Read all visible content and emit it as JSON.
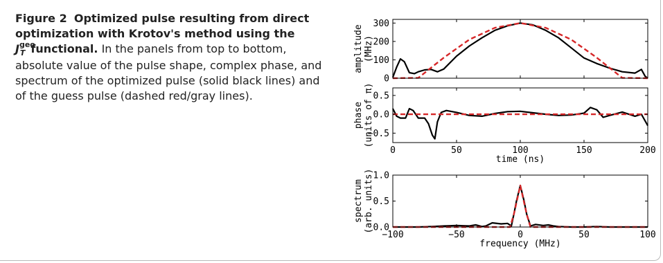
{
  "caption": {
    "figure_label": "Figure 2",
    "title_bold": "Optimized pulse resulting from direct optimization with Krotov's method using the",
    "functional_symbol": "J",
    "functional_sup": "geo",
    "functional_sub": "T",
    "functional_word": "functional.",
    "body": "In the panels from top to bottom, absolute value of the pulse shape, complex phase, and spectrum of the optimized pulse (solid black lines) and of the guess pulse (dashed red/gray lines)."
  },
  "colors": {
    "optimized": "#000000",
    "guess": "#d62728"
  },
  "chart_data": [
    {
      "type": "line",
      "ylabel": "amplitude (MHz)",
      "ylabel_lines": [
        "amplitude",
        "(MHz)"
      ],
      "xlim": [
        0,
        200
      ],
      "ylim": [
        0,
        320
      ],
      "yticks": [
        0,
        100,
        200,
        300
      ],
      "series": [
        {
          "name": "optimized",
          "x": [
            0,
            3,
            6,
            9,
            13,
            17,
            20,
            25,
            30,
            35,
            40,
            50,
            60,
            70,
            80,
            90,
            100,
            110,
            120,
            130,
            140,
            150,
            160,
            170,
            180,
            190,
            195,
            198,
            200
          ],
          "y": [
            5,
            60,
            105,
            90,
            30,
            25,
            35,
            45,
            48,
            35,
            50,
            120,
            175,
            220,
            260,
            285,
            300,
            290,
            260,
            220,
            165,
            110,
            80,
            55,
            35,
            28,
            48,
            10,
            0
          ]
        },
        {
          "name": "guess",
          "x": [
            0,
            20,
            40,
            60,
            80,
            100,
            120,
            140,
            160,
            180,
            200
          ],
          "y": [
            0,
            2,
            112,
            210,
            274,
            300,
            274,
            210,
            112,
            2,
            0
          ]
        }
      ]
    },
    {
      "type": "line",
      "ylabel": "phase (units of π)",
      "ylabel_lines": [
        "phase",
        "(units of π)"
      ],
      "xlabel": "time (ns)",
      "xlim": [
        0,
        200
      ],
      "ylim": [
        -0.75,
        0.7
      ],
      "xticks": [
        0,
        50,
        100,
        150,
        200
      ],
      "yticks": [
        -0.5,
        0.0,
        0.5
      ],
      "ytick_labels": [
        "−0.5",
        "0.0",
        "0.5"
      ],
      "series": [
        {
          "name": "optimized",
          "x": [
            0,
            3,
            6,
            10,
            13,
            16,
            20,
            25,
            28,
            31,
            33,
            35,
            38,
            42,
            50,
            60,
            70,
            80,
            90,
            100,
            110,
            120,
            130,
            140,
            150,
            155,
            160,
            165,
            170,
            180,
            190,
            195,
            200
          ],
          "y": [
            0.15,
            -0.05,
            -0.1,
            -0.1,
            0.15,
            0.1,
            -0.1,
            -0.1,
            -0.25,
            -0.55,
            -0.65,
            -0.2,
            0.05,
            0.1,
            0.05,
            -0.03,
            -0.05,
            0.02,
            0.07,
            0.08,
            0.04,
            0.0,
            -0.03,
            -0.02,
            0.03,
            0.18,
            0.12,
            -0.08,
            -0.03,
            0.06,
            -0.05,
            0.0,
            -0.3
          ]
        },
        {
          "name": "guess",
          "x": [
            0,
            200
          ],
          "y": [
            0,
            0
          ]
        }
      ]
    },
    {
      "type": "line",
      "ylabel": "spectrum (arb. units)",
      "ylabel_lines": [
        "spectrum",
        "(arb. units)"
      ],
      "xlabel": "frequency (MHz)",
      "xlim": [
        -100,
        100
      ],
      "ylim": [
        0,
        1.0
      ],
      "xticks": [
        -100,
        -50,
        0,
        50,
        100
      ],
      "xtick_labels": [
        "−100",
        "−50",
        "0",
        "50",
        "100"
      ],
      "yticks": [
        0.0,
        0.5,
        1.0
      ],
      "ytick_labels": [
        "0.0",
        "0.5",
        "1.0"
      ],
      "series": [
        {
          "name": "optimized",
          "x": [
            -100,
            -80,
            -70,
            -60,
            -50,
            -40,
            -35,
            -30,
            -27,
            -22,
            -15,
            -10,
            -7,
            -5,
            -3,
            0,
            3,
            5,
            8,
            12,
            18,
            22,
            26,
            30,
            40,
            50,
            60,
            70,
            80,
            90,
            100
          ],
          "y": [
            0,
            0,
            0.01,
            0.02,
            0.03,
            0.02,
            0.04,
            0.01,
            0.02,
            0.08,
            0.06,
            0.07,
            0.02,
            0.25,
            0.5,
            0.8,
            0.5,
            0.25,
            0.02,
            0.05,
            0.03,
            0.04,
            0.02,
            0.01,
            0.0,
            0.0,
            0.01,
            0.0,
            0.0,
            0.0,
            0.0
          ]
        },
        {
          "name": "guess",
          "x": [
            -100,
            -8,
            -5,
            0,
            5,
            8,
            100
          ],
          "y": [
            0,
            0,
            0.25,
            0.8,
            0.25,
            0,
            0
          ]
        }
      ]
    }
  ]
}
